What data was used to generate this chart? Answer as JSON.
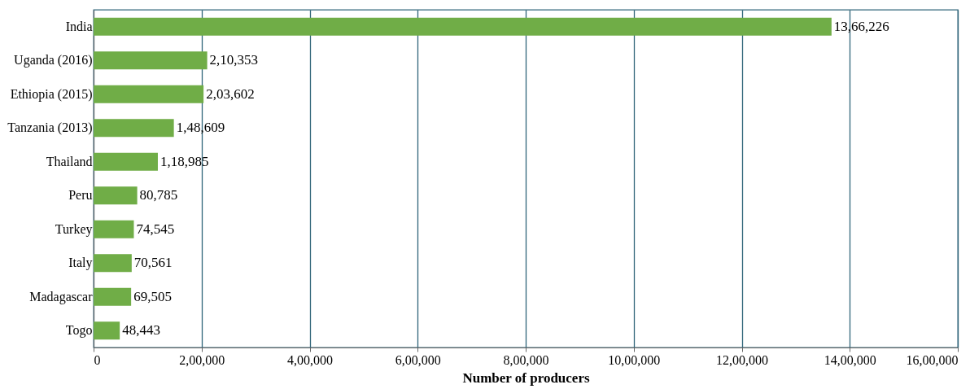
{
  "chart_data": {
    "type": "bar",
    "orientation": "horizontal",
    "xlabel": "Number of producers",
    "categories": [
      "India",
      "Uganda (2016)",
      "Ethiopia (2015)",
      "Tanzania (2013)",
      "Thailand",
      "Peru",
      "Turkey",
      "Italy",
      "Madagascar",
      "Togo"
    ],
    "values": [
      1366226,
      210353,
      203602,
      148609,
      118985,
      80785,
      74545,
      70561,
      69505,
      48443
    ],
    "value_labels": [
      "13,66,226",
      "2,10,353",
      "2,03,602",
      "1,48,609",
      "1,18,985",
      "80,785",
      "74,545",
      "70,561",
      "69,505",
      "48,443"
    ],
    "color": "#70ad47",
    "xlim": [
      0,
      1600000
    ],
    "xticks": [
      0,
      {
        "value": 200000,
        "label": "2,00,000"
      },
      {
        "value": 400000,
        "label": "4,00,000"
      },
      {
        "value": 600000,
        "label": "6,00,000"
      },
      {
        "value": 800000,
        "label": "8,00,000"
      },
      {
        "value": 1000000,
        "label": "10,00,000"
      },
      {
        "value": 1200000,
        "label": "12,00,000"
      },
      {
        "value": 1400000,
        "label": "14,00,000"
      },
      {
        "value": 1600000,
        "label": "16,00,000"
      }
    ],
    "grid": "x"
  }
}
